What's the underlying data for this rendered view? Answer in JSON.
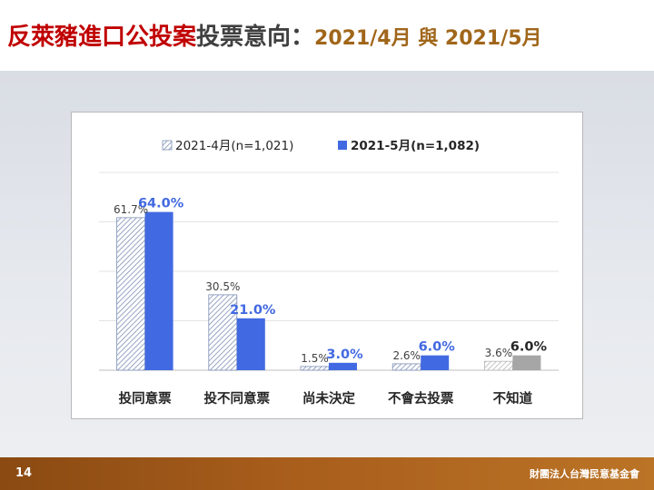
{
  "slide": {
    "title_part1": "反萊豬進口公投案",
    "title_part2": "投票意向：",
    "title_part3": "2021/4月 與 2021/5月",
    "page_number": "14",
    "organization": "財團法人台灣民意基金會"
  },
  "colors": {
    "series_april": "#9aa7c4",
    "series_may": "#4169e1",
    "series_may_last": "#a6a6a6",
    "label_may": "#4169e1"
  },
  "chart_data": {
    "type": "bar",
    "categories": [
      "投同意票",
      "投不同意票",
      "尚未決定",
      "不會去投票",
      "不知道"
    ],
    "series": [
      {
        "name": "2021-4月(n=1,021)",
        "values": [
          61.7,
          30.5,
          1.5,
          2.6,
          3.6
        ],
        "labels": [
          "61.7%",
          "30.5%",
          "1.5%",
          "2.6%",
          "3.6%"
        ]
      },
      {
        "name": "2021-5月(n=1,082)",
        "values": [
          64.0,
          21.0,
          3.0,
          6.0,
          6.0
        ],
        "labels": [
          "64.0%",
          "21.0%",
          "3.0%",
          "6.0%",
          "6.0%"
        ]
      }
    ],
    "ylim": [
      0,
      80
    ],
    "grid": true,
    "legend": "top"
  }
}
